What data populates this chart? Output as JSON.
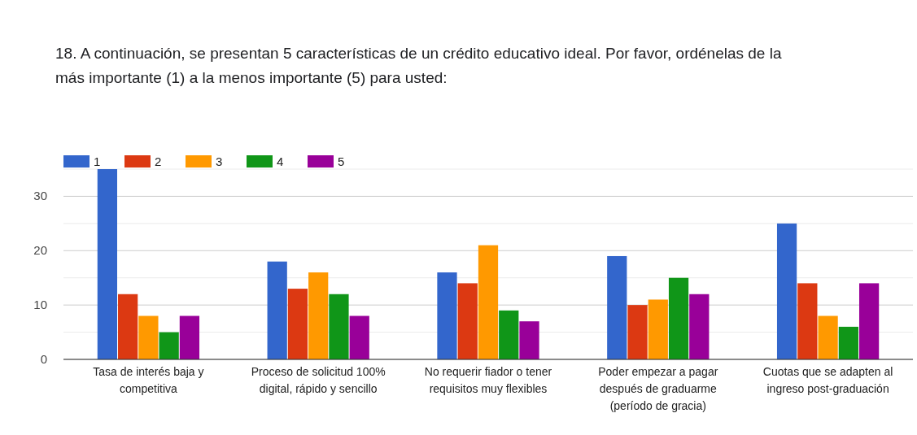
{
  "chart_data": {
    "type": "bar",
    "title": "18. A continuación, se presentan 5 características de un crédito educativo ideal. Por favor, ordénelas de la más importante (1) a la menos importante (5) para usted:",
    "categories": [
      "Tasa de interés baja y competitiva",
      "Proceso de solicitud 100% digital, rápido y sencillo",
      "No requerir fiador o tener requisitos muy flexibles",
      "Poder empezar a pagar después de graduarme (período de gracia)",
      "Cuotas que se adapten al ingreso post-graduación"
    ],
    "series": [
      {
        "name": "1",
        "color": "#3366cc",
        "values": [
          35,
          18,
          16,
          19,
          25
        ]
      },
      {
        "name": "2",
        "color": "#dc3912",
        "values": [
          12,
          13,
          14,
          10,
          14
        ]
      },
      {
        "name": "3",
        "color": "#ff9900",
        "values": [
          8,
          16,
          21,
          11,
          8
        ]
      },
      {
        "name": "4",
        "color": "#109618",
        "values": [
          5,
          12,
          9,
          15,
          6
        ]
      },
      {
        "name": "5",
        "color": "#990099",
        "values": [
          8,
          8,
          7,
          12,
          14
        ]
      }
    ],
    "ylim": [
      0,
      35
    ],
    "yticks": [
      0,
      {
        "value": 5,
        "label": null
      },
      10,
      {
        "value": 15,
        "label": null
      },
      20,
      {
        "value": 25,
        "label": null
      },
      30,
      {
        "value": 35,
        "label": null
      }
    ],
    "grid": "y",
    "legend": "top left"
  }
}
